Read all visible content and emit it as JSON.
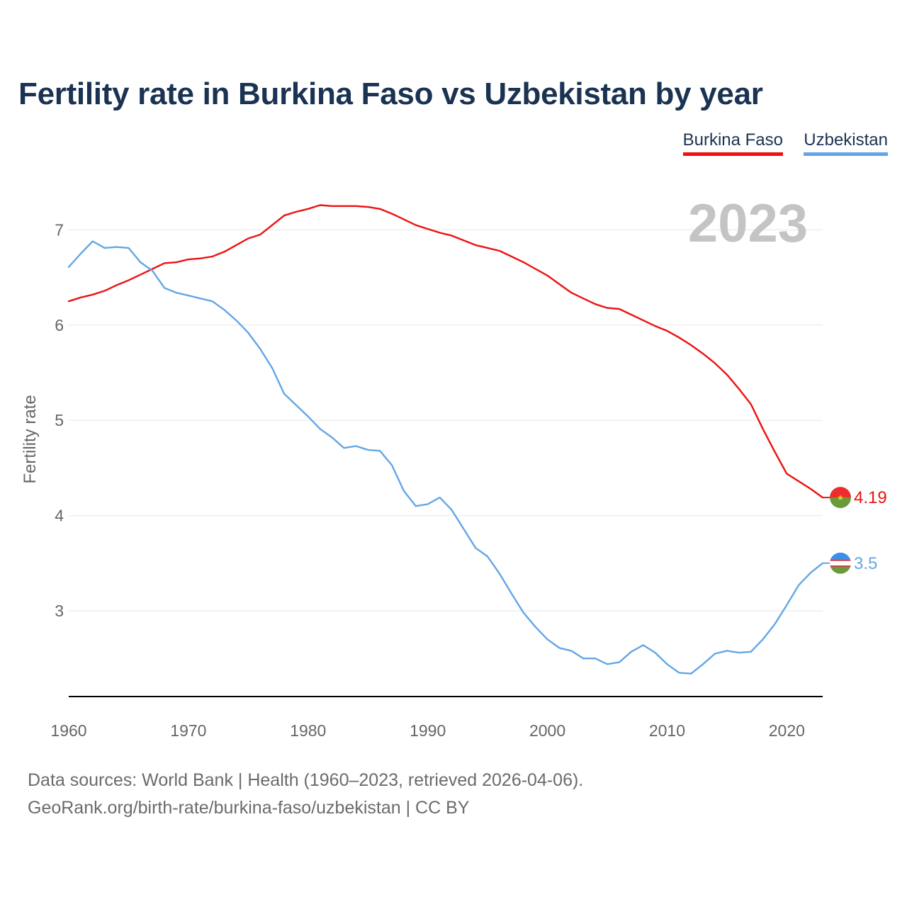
{
  "colors": {
    "title": "#1b3352",
    "axis_text": "#666666",
    "grid": "#e6e6e6",
    "year_watermark": "#c4c4c4"
  },
  "footer": {
    "sources": "Data sources: World Bank | Health (1960–2023, retrieved 2026-04-06).",
    "attribution": "GeoRank.org/birth-rate/burkina-faso/uzbekistan | CC BY"
  },
  "chart_data": {
    "type": "line",
    "title": "Fertility rate in Burkina Faso vs Uzbekistan by year",
    "xlabel": "",
    "ylabel": "Fertility rate",
    "year_label": "2023",
    "xlim": [
      1960,
      2023
    ],
    "ylim": [
      2.1,
      7.5
    ],
    "x_ticks": [
      1960,
      1970,
      1980,
      1990,
      2000,
      2010,
      2020
    ],
    "y_ticks": [
      3,
      4,
      5,
      6,
      7
    ],
    "grid": true,
    "legend_position": "top-right",
    "x": [
      1960,
      1961,
      1962,
      1963,
      1964,
      1965,
      1966,
      1967,
      1968,
      1969,
      1970,
      1971,
      1972,
      1973,
      1974,
      1975,
      1976,
      1977,
      1978,
      1979,
      1980,
      1981,
      1982,
      1983,
      1984,
      1985,
      1986,
      1987,
      1988,
      1989,
      1990,
      1991,
      1992,
      1993,
      1994,
      1995,
      1996,
      1997,
      1998,
      1999,
      2000,
      2001,
      2002,
      2003,
      2004,
      2005,
      2006,
      2007,
      2008,
      2009,
      2010,
      2011,
      2012,
      2013,
      2014,
      2015,
      2016,
      2017,
      2018,
      2019,
      2020,
      2021,
      2022,
      2023
    ],
    "series": [
      {
        "name": "Burkina Faso",
        "color": "#ee1111",
        "end_label": "4.19",
        "values": [
          6.25,
          6.29,
          6.32,
          6.36,
          6.42,
          6.47,
          6.53,
          6.59,
          6.65,
          6.66,
          6.69,
          6.7,
          6.72,
          6.77,
          6.84,
          6.91,
          6.95,
          7.05,
          7.15,
          7.19,
          7.22,
          7.26,
          7.25,
          7.25,
          7.25,
          7.24,
          7.22,
          7.17,
          7.11,
          7.05,
          7.01,
          6.97,
          6.94,
          6.89,
          6.84,
          6.81,
          6.78,
          6.72,
          6.66,
          6.59,
          6.52,
          6.43,
          6.34,
          6.28,
          6.22,
          6.18,
          6.17,
          6.11,
          6.05,
          5.99,
          5.94,
          5.87,
          5.79,
          5.7,
          5.6,
          5.48,
          5.33,
          5.17,
          4.91,
          4.67,
          4.44,
          4.36,
          4.28,
          4.19
        ]
      },
      {
        "name": "Uzbekistan",
        "color": "#63a6e6",
        "end_label": "3.5",
        "values": [
          6.61,
          6.75,
          6.88,
          6.81,
          6.82,
          6.81,
          6.66,
          6.57,
          6.39,
          6.34,
          6.31,
          6.28,
          6.25,
          6.16,
          6.05,
          5.92,
          5.75,
          5.55,
          5.28,
          5.16,
          5.04,
          4.91,
          4.82,
          4.71,
          4.73,
          4.69,
          4.68,
          4.53,
          4.26,
          4.1,
          4.12,
          4.19,
          4.06,
          3.86,
          3.66,
          3.57,
          3.39,
          3.18,
          2.98,
          2.83,
          2.7,
          2.61,
          2.58,
          2.5,
          2.5,
          2.44,
          2.46,
          2.57,
          2.64,
          2.56,
          2.44,
          2.35,
          2.34,
          2.44,
          2.55,
          2.58,
          2.56,
          2.57,
          2.7,
          2.86,
          3.06,
          3.27,
          3.4,
          3.5
        ]
      }
    ]
  }
}
